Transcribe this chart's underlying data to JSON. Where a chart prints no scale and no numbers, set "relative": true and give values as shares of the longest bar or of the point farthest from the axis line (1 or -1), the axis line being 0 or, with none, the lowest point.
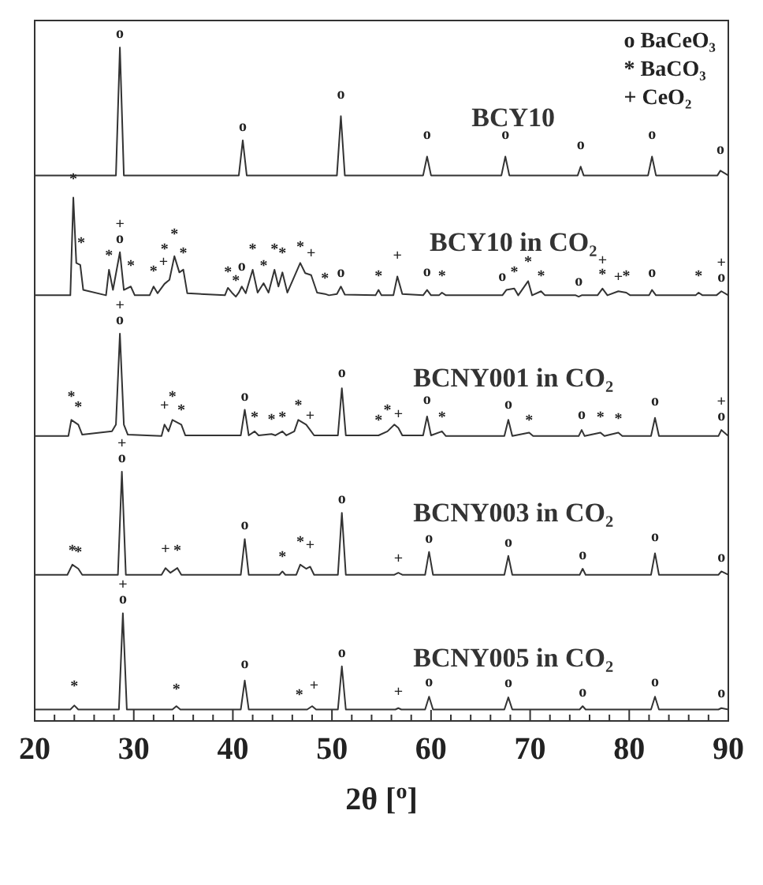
{
  "chart_data": {
    "type": "line",
    "relative": true,
    "xlabel": "2θ [$^{o}$]",
    "xlim": [
      20,
      90
    ],
    "xticks": [
      20,
      {
        "value": 22,
        "label": null
      },
      {
        "value": 24,
        "label": null
      },
      {
        "value": 26,
        "label": null
      },
      {
        "value": 28,
        "label": null
      },
      30,
      {
        "value": 32,
        "label": null
      },
      {
        "value": 34,
        "label": null
      },
      {
        "value": 36,
        "label": null
      },
      {
        "value": 38,
        "label": null
      },
      40,
      {
        "value": 42,
        "label": null
      },
      {
        "value": 44,
        "label": null
      },
      {
        "value": 46,
        "label": null
      },
      {
        "value": 48,
        "label": null
      },
      50,
      {
        "value": 52,
        "label": null
      },
      {
        "value": 54,
        "label": null
      },
      {
        "value": 56,
        "label": null
      },
      {
        "value": 58,
        "label": null
      },
      60,
      {
        "value": 62,
        "label": null
      },
      {
        "value": 64,
        "label": null
      },
      {
        "value": 66,
        "label": null
      },
      {
        "value": 68,
        "label": null
      },
      70,
      {
        "value": 72,
        "label": null
      },
      {
        "value": 74,
        "label": null
      },
      {
        "value": 76,
        "label": null
      },
      {
        "value": 78,
        "label": null
      },
      80,
      {
        "value": 82,
        "label": null
      },
      {
        "value": 84,
        "label": null
      },
      {
        "value": 86,
        "label": null
      },
      {
        "value": 88,
        "label": null
      },
      90
    ],
    "series": [
      {
        "name": "BCY10",
        "color": "#333333",
        "x": [
          20,
          28.2,
          28.6,
          29.0,
          40.6,
          41.0,
          41.4,
          50.5,
          50.9,
          51.3,
          59.2,
          59.6,
          60.0,
          67.1,
          67.5,
          67.9,
          74.8,
          75.1,
          75.4,
          81.9,
          82.3,
          82.7,
          88.9,
          89.2,
          90
        ],
        "values": [
          0.81,
          0.81,
          1,
          0.81,
          0.81,
          0.862,
          0.81,
          0.81,
          0.898,
          0.81,
          0.81,
          0.838,
          0.81,
          0.81,
          0.838,
          0.81,
          0.81,
          0.823,
          0.81,
          0.81,
          0.838,
          0.81,
          0.81,
          0.817,
          0.81
        ]
      },
      {
        "name": "BCY10 in CO₂",
        "color": "#333333",
        "x": [
          20,
          23.6,
          23.9,
          24.2,
          24.6,
          24.9,
          27.2,
          27.5,
          27.9,
          28.6,
          29.0,
          29.7,
          30.1,
          31.6,
          32.0,
          32.4,
          33.1,
          33.6,
          34.1,
          34.6,
          35.0,
          35.4,
          39.2,
          39.5,
          39.9,
          40.3,
          40.6,
          40.9,
          41.3,
          42.0,
          42.5,
          43.1,
          43.6,
          44.2,
          44.6,
          45.0,
          45.5,
          46.8,
          47.3,
          47.9,
          48.5,
          49.3,
          49.7,
          50.5,
          50.9,
          51.3,
          54.4,
          54.7,
          55.0,
          56.2,
          56.6,
          57.1,
          59.2,
          59.6,
          60.0,
          60.8,
          61.1,
          61.5,
          67.2,
          67.6,
          68.4,
          68.8,
          69.8,
          70.2,
          71.1,
          71.5,
          74.6,
          74.9,
          75.2,
          76.8,
          77.3,
          77.8,
          78.9,
          79.7,
          80.1,
          82.0,
          82.3,
          82.7,
          86.7,
          87.0,
          87.4,
          88.8,
          89.3,
          90
        ],
        "values": [
          0.632,
          0.632,
          0.777,
          0.68,
          0.677,
          0.64,
          0.632,
          0.67,
          0.64,
          0.696,
          0.64,
          0.645,
          0.632,
          0.632,
          0.645,
          0.635,
          0.649,
          0.655,
          0.69,
          0.666,
          0.67,
          0.635,
          0.632,
          0.643,
          0.636,
          0.63,
          0.636,
          0.645,
          0.635,
          0.67,
          0.636,
          0.65,
          0.636,
          0.67,
          0.645,
          0.666,
          0.636,
          0.68,
          0.665,
          0.662,
          0.636,
          0.634,
          0.632,
          0.634,
          0.645,
          0.633,
          0.632,
          0.64,
          0.632,
          0.632,
          0.66,
          0.634,
          0.632,
          0.64,
          0.632,
          0.632,
          0.636,
          0.632,
          0.632,
          0.64,
          0.642,
          0.632,
          0.653,
          0.632,
          0.638,
          0.632,
          0.632,
          0.63,
          0.632,
          0.632,
          0.642,
          0.632,
          0.638,
          0.636,
          0.632,
          0.632,
          0.64,
          0.632,
          0.632,
          0.636,
          0.632,
          0.632,
          0.638,
          0.632
        ]
      },
      {
        "name": "BCNY001 in CO₂",
        "color": "#333333",
        "x": [
          20,
          23.4,
          23.7,
          24.4,
          24.8,
          27.8,
          28.2,
          28.6,
          29.0,
          29.4,
          32.8,
          33.1,
          33.5,
          33.9,
          34.8,
          35.2,
          40.8,
          41.2,
          41.6,
          42.2,
          42.6,
          43.9,
          44.3,
          45.0,
          45.4,
          46.2,
          46.6,
          47.4,
          47.8,
          48.2,
          50.6,
          51.0,
          51.4,
          54.7,
          55.6,
          56.3,
          56.7,
          57.1,
          59.2,
          59.6,
          60.0,
          61.1,
          61.5,
          67.4,
          67.8,
          68.2,
          69.9,
          70.3,
          74.9,
          75.2,
          75.5,
          77.1,
          77.5,
          78.9,
          79.3,
          82.2,
          82.6,
          83.0,
          89.0,
          89.3,
          90
        ],
        "values": [
          0.423,
          0.423,
          0.447,
          0.44,
          0.425,
          0.43,
          0.44,
          0.575,
          0.44,
          0.425,
          0.423,
          0.44,
          0.43,
          0.447,
          0.44,
          0.424,
          0.424,
          0.462,
          0.424,
          0.43,
          0.424,
          0.426,
          0.424,
          0.43,
          0.424,
          0.43,
          0.447,
          0.44,
          0.432,
          0.424,
          0.424,
          0.494,
          0.424,
          0.424,
          0.43,
          0.44,
          0.435,
          0.424,
          0.424,
          0.452,
          0.424,
          0.43,
          0.423,
          0.423,
          0.447,
          0.423,
          0.428,
          0.423,
          0.423,
          0.432,
          0.423,
          0.428,
          0.423,
          0.428,
          0.423,
          0.423,
          0.45,
          0.423,
          0.423,
          0.432,
          0.423
        ]
      },
      {
        "name": "BCNY003 in CO₂",
        "color": "#333333",
        "x": [
          20,
          23.3,
          23.8,
          24.4,
          24.8,
          28.4,
          28.8,
          29.2,
          32.8,
          33.2,
          33.7,
          34.4,
          34.8,
          40.8,
          41.2,
          41.6,
          44.7,
          45.0,
          45.3,
          46.4,
          46.8,
          47.4,
          47.8,
          48.2,
          50.6,
          51.0,
          51.4,
          56.3,
          56.7,
          57.1,
          59.4,
          59.8,
          60.2,
          67.4,
          67.8,
          68.2,
          75.0,
          75.3,
          75.6,
          82.2,
          82.6,
          83.0,
          89.0,
          89.3,
          90
        ],
        "values": [
          0.217,
          0.217,
          0.232,
          0.226,
          0.217,
          0.217,
          0.37,
          0.217,
          0.217,
          0.227,
          0.22,
          0.227,
          0.217,
          0.217,
          0.27,
          0.217,
          0.217,
          0.222,
          0.217,
          0.217,
          0.232,
          0.226,
          0.229,
          0.217,
          0.217,
          0.309,
          0.217,
          0.217,
          0.22,
          0.217,
          0.217,
          0.251,
          0.217,
          0.217,
          0.245,
          0.217,
          0.217,
          0.226,
          0.217,
          0.217,
          0.249,
          0.217,
          0.217,
          0.222,
          0.217
        ]
      },
      {
        "name": "BCNY005 in CO₂",
        "color": "#333333",
        "x": [
          20,
          23.6,
          24.0,
          24.4,
          28.5,
          28.9,
          29.3,
          33.9,
          34.3,
          34.7,
          40.8,
          41.2,
          41.6,
          47.5,
          48.0,
          48.4,
          50.6,
          51.0,
          51.4,
          56.4,
          56.7,
          57.0,
          59.4,
          59.8,
          60.2,
          67.4,
          67.8,
          68.2,
          75.0,
          75.3,
          75.6,
          82.2,
          82.6,
          83.0,
          89.0,
          89.3,
          90
        ],
        "values": [
          0.017,
          0.017,
          0.023,
          0.017,
          0.017,
          0.16,
          0.017,
          0.017,
          0.022,
          0.017,
          0.017,
          0.06,
          0.017,
          0.017,
          0.022,
          0.017,
          0.017,
          0.081,
          0.017,
          0.017,
          0.019,
          0.017,
          0.017,
          0.036,
          0.017,
          0.017,
          0.035,
          0.017,
          0.017,
          0.022,
          0.017,
          0.017,
          0.036,
          0.017,
          0.017,
          0.019,
          0.017
        ]
      }
    ],
    "annotations": [
      "o BaCeO₃",
      "* BaCO₃",
      "+ CeO₂",
      {
        "text": "o",
        "x": 28.6,
        "y": 1
      },
      {
        "text": "o",
        "x": 41.0,
        "y": 0.862
      },
      {
        "text": "o",
        "x": 50.9,
        "y": 0.91
      },
      {
        "text": "o",
        "x": 59.6,
        "y": 0.85
      },
      {
        "text": "o",
        "x": 67.5,
        "y": 0.85
      },
      {
        "text": "o",
        "x": 75.1,
        "y": 0.835
      },
      {
        "text": "o",
        "x": 82.3,
        "y": 0.85
      },
      {
        "text": "o",
        "x": 89.2,
        "y": 0.828
      },
      {
        "text": "*",
        "x": 23.9,
        "y": 0.783
      },
      {
        "text": "*",
        "x": 24.7,
        "y": 0.689
      },
      {
        "text": "*",
        "x": 27.5,
        "y": 0.67
      },
      {
        "text": "+",
        "x": 28.6,
        "y": 0.696
      },
      {
        "text": "o",
        "x": 28.6,
        "y": 0.696
      },
      {
        "text": "*",
        "x": 29.7,
        "y": 0.655
      },
      {
        "text": "*",
        "x": 32.0,
        "y": 0.647
      },
      {
        "text": "+",
        "x": 33.0,
        "y": 0.661
      },
      {
        "text": "*",
        "x": 33.1,
        "y": 0.679
      },
      {
        "text": "*",
        "x": 34.1,
        "y": 0.702
      },
      {
        "text": "*",
        "x": 35.0,
        "y": 0.674
      },
      {
        "text": "*",
        "x": 39.5,
        "y": 0.645
      },
      {
        "text": "*",
        "x": 40.3,
        "y": 0.632
      },
      {
        "text": "o",
        "x": 40.9,
        "y": 0.655
      },
      {
        "text": "*",
        "x": 42.0,
        "y": 0.679
      },
      {
        "text": "*",
        "x": 43.1,
        "y": 0.655
      },
      {
        "text": "*",
        "x": 44.2,
        "y": 0.679
      },
      {
        "text": "*",
        "x": 45.0,
        "y": 0.674
      },
      {
        "text": "*",
        "x": 46.8,
        "y": 0.683
      },
      {
        "text": "+",
        "x": 47.9,
        "y": 0.674
      },
      {
        "text": "*",
        "x": 49.3,
        "y": 0.636
      },
      {
        "text": "o",
        "x": 50.9,
        "y": 0.645
      },
      {
        "text": "*",
        "x": 54.7,
        "y": 0.64
      },
      {
        "text": "+",
        "x": 56.6,
        "y": 0.67
      },
      {
        "text": "o",
        "x": 59.6,
        "y": 0.647
      },
      {
        "text": "*",
        "x": 61.1,
        "y": 0.64
      },
      {
        "text": "o",
        "x": 67.2,
        "y": 0.64
      },
      {
        "text": "*",
        "x": 68.4,
        "y": 0.645
      },
      {
        "text": "*",
        "x": 69.8,
        "y": 0.66
      },
      {
        "text": "*",
        "x": 71.1,
        "y": 0.64
      },
      {
        "text": "o",
        "x": 74.9,
        "y": 0.632
      },
      {
        "text": "+",
        "x": 77.3,
        "y": 0.642
      },
      {
        "text": "*",
        "x": 77.3,
        "y": 0.642
      },
      {
        "text": "+",
        "x": 78.9,
        "y": 0.638
      },
      {
        "text": "*",
        "x": 79.7,
        "y": 0.64
      },
      {
        "text": "o",
        "x": 82.3,
        "y": 0.645
      },
      {
        "text": "*",
        "x": 87.0,
        "y": 0.64
      },
      {
        "text": "+",
        "x": 89.3,
        "y": 0.638
      },
      {
        "text": "o",
        "x": 89.3,
        "y": 0.638
      },
      {
        "text": "+",
        "x": 28.6,
        "y": 0.575
      },
      {
        "text": "o",
        "x": 28.6,
        "y": 0.575
      },
      {
        "text": "*",
        "x": 23.7,
        "y": 0.46
      },
      {
        "text": "*",
        "x": 24.4,
        "y": 0.445
      },
      {
        "text": "+",
        "x": 33.1,
        "y": 0.447
      },
      {
        "text": "*",
        "x": 33.9,
        "y": 0.46
      },
      {
        "text": "*",
        "x": 34.8,
        "y": 0.44
      },
      {
        "text": "o",
        "x": 41.2,
        "y": 0.462
      },
      {
        "text": "*",
        "x": 42.2,
        "y": 0.43
      },
      {
        "text": "*",
        "x": 43.9,
        "y": 0.426
      },
      {
        "text": "*",
        "x": 45.0,
        "y": 0.43
      },
      {
        "text": "*",
        "x": 46.6,
        "y": 0.447
      },
      {
        "text": "+",
        "x": 47.8,
        "y": 0.432
      },
      {
        "text": "o",
        "x": 51.0,
        "y": 0.496
      },
      {
        "text": "*",
        "x": 54.7,
        "y": 0.425
      },
      {
        "text": "*",
        "x": 55.6,
        "y": 0.44
      },
      {
        "text": "+",
        "x": 56.7,
        "y": 0.435
      },
      {
        "text": "o",
        "x": 59.6,
        "y": 0.457
      },
      {
        "text": "*",
        "x": 61.1,
        "y": 0.43
      },
      {
        "text": "o",
        "x": 67.8,
        "y": 0.45
      },
      {
        "text": "*",
        "x": 69.9,
        "y": 0.425
      },
      {
        "text": "o",
        "x": 75.2,
        "y": 0.435
      },
      {
        "text": "*",
        "x": 77.1,
        "y": 0.43
      },
      {
        "text": "*",
        "x": 78.9,
        "y": 0.428
      },
      {
        "text": "o",
        "x": 82.6,
        "y": 0.454
      },
      {
        "text": "+",
        "x": 89.3,
        "y": 0.432
      },
      {
        "text": "o",
        "x": 89.3,
        "y": 0.432
      },
      {
        "text": "+",
        "x": 28.8,
        "y": 0.37
      },
      {
        "text": "o",
        "x": 28.8,
        "y": 0.37
      },
      {
        "text": "*",
        "x": 23.8,
        "y": 0.232
      },
      {
        "text": "*",
        "x": 24.4,
        "y": 0.23
      },
      {
        "text": "+",
        "x": 33.2,
        "y": 0.234
      },
      {
        "text": "*",
        "x": 34.4,
        "y": 0.232
      },
      {
        "text": "o",
        "x": 41.2,
        "y": 0.27
      },
      {
        "text": "*",
        "x": 45.0,
        "y": 0.223
      },
      {
        "text": "*",
        "x": 46.8,
        "y": 0.245
      },
      {
        "text": "+",
        "x": 47.8,
        "y": 0.24
      },
      {
        "text": "o",
        "x": 51.0,
        "y": 0.309
      },
      {
        "text": "+",
        "x": 56.7,
        "y": 0.22
      },
      {
        "text": "o",
        "x": 59.8,
        "y": 0.251
      },
      {
        "text": "o",
        "x": 67.8,
        "y": 0.245
      },
      {
        "text": "o",
        "x": 75.3,
        "y": 0.226
      },
      {
        "text": "o",
        "x": 82.6,
        "y": 0.253
      },
      {
        "text": "o",
        "x": 89.3,
        "y": 0.223
      },
      {
        "text": "+",
        "x": 28.9,
        "y": 0.16
      },
      {
        "text": "o",
        "x": 28.9,
        "y": 0.16
      },
      {
        "text": "*",
        "x": 24.0,
        "y": 0.03
      },
      {
        "text": "*",
        "x": 34.3,
        "y": 0.026
      },
      {
        "text": "o",
        "x": 41.2,
        "y": 0.064
      },
      {
        "text": "*",
        "x": 46.7,
        "y": 0.017
      },
      {
        "text": "+",
        "x": 48.2,
        "y": 0.032
      },
      {
        "text": "o",
        "x": 51.0,
        "y": 0.081
      },
      {
        "text": "+",
        "x": 56.7,
        "y": 0.022
      },
      {
        "text": "o",
        "x": 59.8,
        "y": 0.038
      },
      {
        "text": "o",
        "x": 67.8,
        "y": 0.036
      },
      {
        "text": "o",
        "x": 75.3,
        "y": 0.022
      },
      {
        "text": "o",
        "x": 82.6,
        "y": 0.038
      },
      {
        "text": "o",
        "x": 89.3,
        "y": 0.021
      }
    ]
  }
}
